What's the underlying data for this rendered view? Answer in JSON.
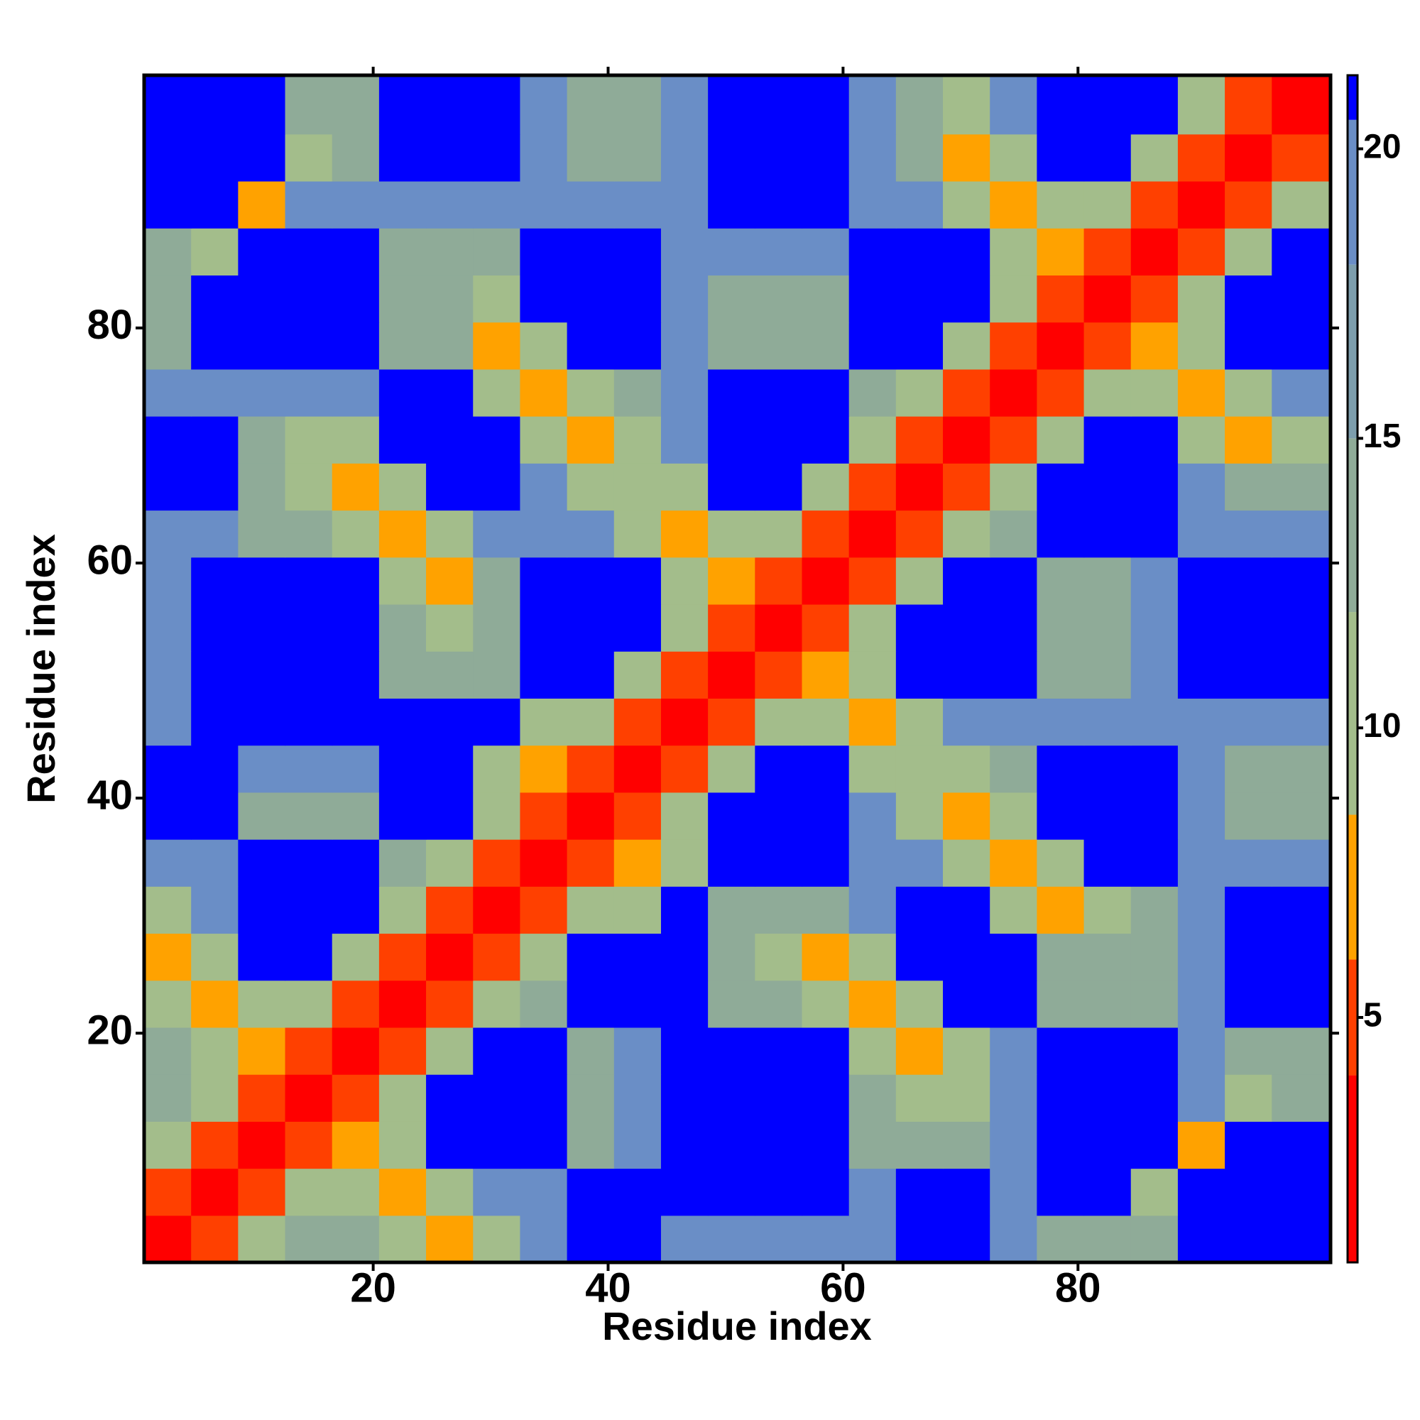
{
  "chart_data": {
    "type": "heatmap",
    "xlabel": "Residue index",
    "ylabel": "Residue index",
    "xbins": [
      0.5,
      4.5,
      8.5,
      12.5,
      16.5,
      20.5,
      24.5,
      28.5,
      32.5,
      36.5,
      40.5,
      44.5,
      48.5,
      52.5,
      56.5,
      60.5,
      64.5,
      68.5,
      72.5,
      76.5,
      80.5,
      84.5,
      88.5,
      92.5,
      96.5,
      101.5
    ],
    "ybins": [
      0.5,
      4.5,
      8.5,
      12.5,
      16.5,
      20.5,
      24.5,
      28.5,
      32.5,
      36.5,
      40.5,
      44.5,
      48.5,
      52.5,
      56.5,
      60.5,
      64.5,
      68.5,
      72.5,
      76.5,
      80.5,
      84.5,
      88.5,
      92.5,
      96.5,
      101.5
    ],
    "xlim": [
      0.5,
      101.5
    ],
    "ylim": [
      0.5,
      101.5
    ],
    "xticks": [
      20,
      40,
      60,
      80
    ],
    "yticks": [
      20,
      40,
      60,
      80
    ],
    "z": [
      [
        2,
        5,
        10,
        12,
        14,
        10,
        7,
        10,
        18,
        21,
        21,
        18,
        18,
        18,
        18,
        18,
        21,
        21,
        18,
        14,
        14,
        14,
        21,
        21,
        21
      ],
      [
        5,
        2,
        5,
        10,
        10,
        7,
        10,
        18,
        18,
        21,
        21,
        21,
        21,
        21,
        21,
        18,
        21,
        21,
        18,
        21,
        21,
        10,
        21,
        21,
        21
      ],
      [
        10,
        5,
        2,
        5,
        7,
        10,
        21,
        21,
        21,
        14,
        18,
        21,
        21,
        21,
        21,
        14,
        14,
        14,
        18,
        21,
        21,
        21,
        7,
        21,
        21
      ],
      [
        12,
        10,
        5,
        2,
        5,
        10,
        21,
        21,
        21,
        14,
        18,
        21,
        21,
        21,
        21,
        14,
        10,
        10,
        18,
        21,
        21,
        21,
        18,
        10,
        14
      ],
      [
        14,
        10,
        7,
        5,
        2,
        5,
        10,
        21,
        21,
        14,
        18,
        21,
        21,
        21,
        21,
        10,
        7,
        10,
        18,
        21,
        21,
        21,
        18,
        14,
        14
      ],
      [
        10,
        7,
        10,
        10,
        5,
        2,
        5,
        10,
        12,
        21,
        21,
        21,
        14,
        14,
        10,
        7,
        10,
        21,
        21,
        14,
        14,
        14,
        18,
        21,
        21
      ],
      [
        7,
        10,
        21,
        21,
        10,
        5,
        2,
        5,
        10,
        21,
        21,
        21,
        14,
        10,
        7,
        10,
        21,
        21,
        21,
        14,
        14,
        14,
        18,
        21,
        21
      ],
      [
        10,
        18,
        21,
        21,
        21,
        10,
        5,
        2,
        5,
        10,
        10,
        21,
        14,
        14,
        14,
        18,
        21,
        21,
        10,
        7,
        10,
        14,
        18,
        21,
        21
      ],
      [
        18,
        18,
        21,
        21,
        21,
        12,
        10,
        5,
        2,
        5,
        7,
        10,
        21,
        21,
        21,
        18,
        18,
        10,
        7,
        10,
        21,
        21,
        18,
        18,
        18
      ],
      [
        21,
        21,
        14,
        14,
        14,
        21,
        21,
        10,
        5,
        2,
        5,
        10,
        21,
        21,
        21,
        18,
        10,
        7,
        10,
        21,
        21,
        21,
        18,
        14,
        14
      ],
      [
        21,
        21,
        18,
        18,
        18,
        21,
        21,
        10,
        7,
        5,
        2,
        5,
        10,
        21,
        21,
        10,
        10,
        10,
        14,
        21,
        21,
        21,
        18,
        14,
        14
      ],
      [
        18,
        21,
        21,
        21,
        21,
        21,
        21,
        21,
        10,
        10,
        5,
        2,
        5,
        10,
        10,
        7,
        10,
        18,
        18,
        18,
        18,
        18,
        18,
        18,
        18
      ],
      [
        18,
        21,
        21,
        21,
        21,
        14,
        14,
        14,
        21,
        21,
        10,
        5,
        2,
        5,
        7,
        10,
        21,
        21,
        21,
        14,
        14,
        18,
        21,
        21,
        21
      ],
      [
        18,
        21,
        21,
        21,
        21,
        14,
        10,
        14,
        21,
        21,
        21,
        10,
        5,
        2,
        5,
        10,
        21,
        21,
        21,
        14,
        14,
        18,
        21,
        21,
        21
      ],
      [
        18,
        21,
        21,
        21,
        21,
        10,
        7,
        14,
        21,
        21,
        21,
        10,
        7,
        5,
        2,
        5,
        10,
        21,
        21,
        14,
        14,
        18,
        21,
        21,
        21
      ],
      [
        18,
        18,
        14,
        14,
        10,
        7,
        10,
        18,
        18,
        18,
        10,
        7,
        10,
        10,
        5,
        2,
        5,
        10,
        12,
        21,
        21,
        21,
        18,
        18,
        18
      ],
      [
        21,
        21,
        14,
        10,
        7,
        10,
        21,
        21,
        18,
        10,
        10,
        10,
        21,
        21,
        10,
        5,
        2,
        5,
        10,
        21,
        21,
        21,
        18,
        14,
        14
      ],
      [
        21,
        21,
        14,
        10,
        10,
        21,
        21,
        21,
        10,
        7,
        10,
        18,
        21,
        21,
        21,
        10,
        5,
        2,
        5,
        10,
        21,
        21,
        10,
        7,
        10
      ],
      [
        18,
        18,
        18,
        18,
        18,
        21,
        21,
        10,
        7,
        10,
        14,
        18,
        21,
        21,
        21,
        12,
        10,
        5,
        2,
        5,
        10,
        10,
        7,
        10,
        18
      ],
      [
        14,
        21,
        21,
        21,
        21,
        14,
        14,
        7,
        10,
        21,
        21,
        18,
        14,
        14,
        14,
        21,
        21,
        10,
        5,
        2,
        5,
        7,
        10,
        21,
        21
      ],
      [
        14,
        21,
        21,
        21,
        21,
        14,
        14,
        10,
        21,
        21,
        21,
        18,
        14,
        14,
        14,
        21,
        21,
        21,
        10,
        5,
        2,
        5,
        10,
        21,
        21
      ],
      [
        14,
        10,
        21,
        21,
        21,
        14,
        14,
        14,
        21,
        21,
        21,
        18,
        18,
        18,
        18,
        21,
        21,
        21,
        10,
        7,
        5,
        2,
        5,
        10,
        21
      ],
      [
        21,
        21,
        7,
        18,
        18,
        18,
        18,
        18,
        18,
        18,
        18,
        18,
        21,
        21,
        21,
        18,
        18,
        10,
        7,
        10,
        10,
        5,
        2,
        5,
        10
      ],
      [
        21,
        21,
        21,
        10,
        14,
        21,
        21,
        21,
        18,
        14,
        14,
        18,
        21,
        21,
        21,
        18,
        14,
        7,
        10,
        21,
        21,
        10,
        5,
        2,
        5
      ],
      [
        21,
        21,
        21,
        14,
        14,
        21,
        21,
        21,
        18,
        14,
        14,
        18,
        21,
        21,
        21,
        18,
        14,
        10,
        18,
        21,
        21,
        21,
        10,
        5,
        2
      ]
    ],
    "colorbar": {
      "lim": [
        0.77,
        21.27
      ],
      "ticks": [
        5,
        10,
        15,
        20
      ],
      "bins": [
        0.77,
        4,
        6,
        8.5,
        12,
        15,
        18,
        20.5,
        21.27
      ],
      "colors": [
        "#ff0000",
        "#ff4000",
        "#ffa200",
        "#a3bd8b",
        "#8fab98",
        "#7d9ead",
        "#6a8ec6",
        "#0000ff"
      ]
    }
  }
}
